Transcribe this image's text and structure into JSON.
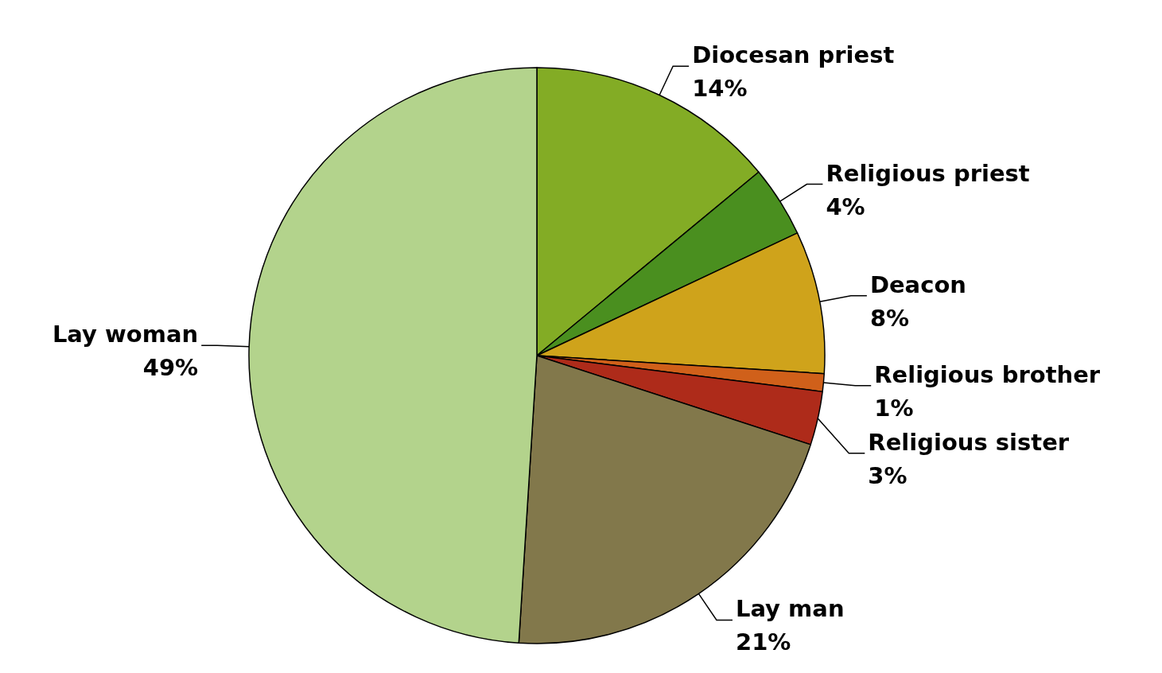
{
  "chart_data": {
    "type": "pie",
    "categories": [
      "Diocesan priest",
      "Religious priest",
      "Deacon",
      "Religious brother",
      "Religious sister",
      "Lay man",
      "Lay woman"
    ],
    "values": [
      14,
      4,
      8,
      1,
      3,
      21,
      49
    ],
    "value_labels": [
      "14%",
      "4%",
      "8%",
      "1%",
      "3%",
      "21%",
      "49%"
    ],
    "colors": [
      "#83ac25",
      "#4a8f1f",
      "#cfa31b",
      "#d0601a",
      "#ae2b1a",
      "#82784b",
      "#b3d38c"
    ]
  }
}
